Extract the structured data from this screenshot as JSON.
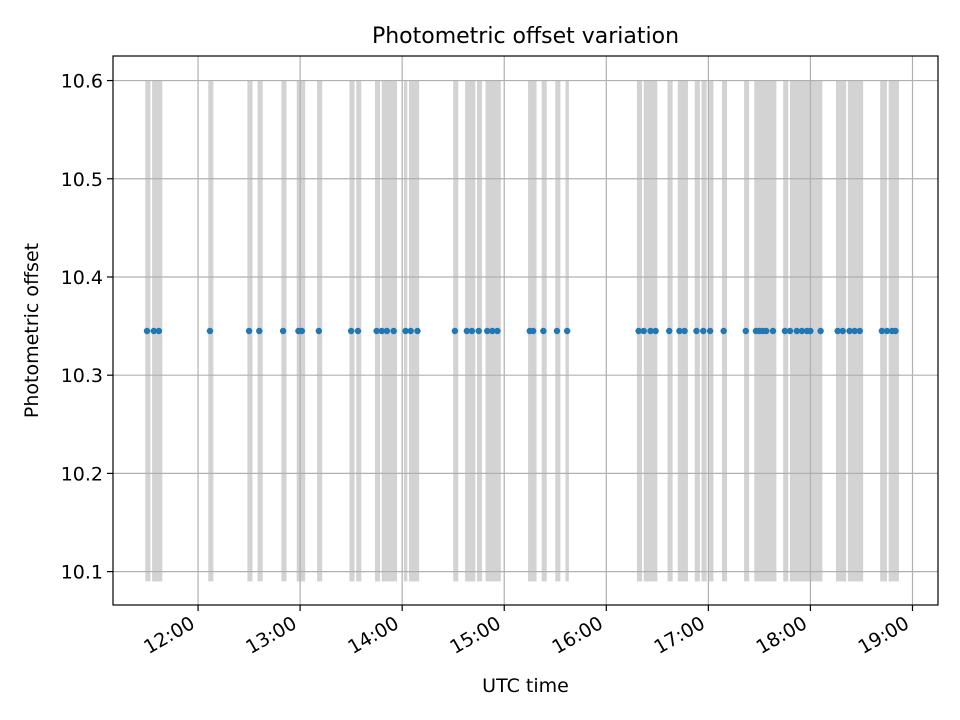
{
  "chart_data": {
    "type": "scatter",
    "title": "Photometric offset variation",
    "xlabel": "UTC time",
    "ylabel": "Photometric offset",
    "x_unit": "UTC hh:mm",
    "xlim": [
      "11:10",
      "19:15"
    ],
    "ylim": [
      10.066,
      10.625
    ],
    "grid": true,
    "x_ticks": [
      "12:00",
      "13:00",
      "14:00",
      "15:00",
      "16:00",
      "17:00",
      "18:00",
      "19:00"
    ],
    "y_ticks": [
      10.1,
      10.2,
      10.3,
      10.4,
      10.5,
      10.6
    ],
    "series": [
      {
        "marker_color": "#1f77b4",
        "points": [
          {
            "x": "11:30",
            "y": 10.345
          },
          {
            "x": "11:34",
            "y": 10.345
          },
          {
            "x": "11:37",
            "y": 10.345
          },
          {
            "x": "12:07",
            "y": 10.345
          },
          {
            "x": "12:30",
            "y": 10.345
          },
          {
            "x": "12:36",
            "y": 10.345
          },
          {
            "x": "12:50",
            "y": 10.345
          },
          {
            "x": "12:59",
            "y": 10.345
          },
          {
            "x": "13:01",
            "y": 10.345
          },
          {
            "x": "13:11",
            "y": 10.345
          },
          {
            "x": "13:30",
            "y": 10.345
          },
          {
            "x": "13:34",
            "y": 10.345
          },
          {
            "x": "13:45",
            "y": 10.345
          },
          {
            "x": "13:48",
            "y": 10.345
          },
          {
            "x": "13:51",
            "y": 10.345
          },
          {
            "x": "13:55",
            "y": 10.345
          },
          {
            "x": "14:02",
            "y": 10.345
          },
          {
            "x": "14:05",
            "y": 10.345
          },
          {
            "x": "14:09",
            "y": 10.345
          },
          {
            "x": "14:31",
            "y": 10.345
          },
          {
            "x": "14:38",
            "y": 10.345
          },
          {
            "x": "14:41",
            "y": 10.345
          },
          {
            "x": "14:45",
            "y": 10.345
          },
          {
            "x": "14:50",
            "y": 10.345
          },
          {
            "x": "14:53",
            "y": 10.345
          },
          {
            "x": "14:56",
            "y": 10.345
          },
          {
            "x": "15:15",
            "y": 10.345
          },
          {
            "x": "15:17",
            "y": 10.345
          },
          {
            "x": "15:23",
            "y": 10.345
          },
          {
            "x": "15:31",
            "y": 10.345
          },
          {
            "x": "15:37",
            "y": 10.345
          },
          {
            "x": "16:19",
            "y": 10.345
          },
          {
            "x": "16:22",
            "y": 10.345
          },
          {
            "x": "16:26",
            "y": 10.345
          },
          {
            "x": "16:29",
            "y": 10.345
          },
          {
            "x": "16:37",
            "y": 10.345
          },
          {
            "x": "16:43",
            "y": 10.345
          },
          {
            "x": "16:46",
            "y": 10.345
          },
          {
            "x": "16:53",
            "y": 10.345
          },
          {
            "x": "16:57",
            "y": 10.345
          },
          {
            "x": "17:01",
            "y": 10.345
          },
          {
            "x": "17:09",
            "y": 10.345
          },
          {
            "x": "17:22",
            "y": 10.345
          },
          {
            "x": "17:28",
            "y": 10.345
          },
          {
            "x": "17:30",
            "y": 10.345
          },
          {
            "x": "17:32",
            "y": 10.345
          },
          {
            "x": "17:34",
            "y": 10.345
          },
          {
            "x": "17:38",
            "y": 10.345
          },
          {
            "x": "17:45",
            "y": 10.345
          },
          {
            "x": "17:48",
            "y": 10.345
          },
          {
            "x": "17:52",
            "y": 10.345
          },
          {
            "x": "17:55",
            "y": 10.345
          },
          {
            "x": "17:58",
            "y": 10.345
          },
          {
            "x": "18:00",
            "y": 10.345
          },
          {
            "x": "18:06",
            "y": 10.345
          },
          {
            "x": "18:16",
            "y": 10.345
          },
          {
            "x": "18:19",
            "y": 10.345
          },
          {
            "x": "18:23",
            "y": 10.345
          },
          {
            "x": "18:26",
            "y": 10.345
          },
          {
            "x": "18:29",
            "y": 10.345
          },
          {
            "x": "18:42",
            "y": 10.345
          },
          {
            "x": "18:45",
            "y": 10.345
          },
          {
            "x": "18:48",
            "y": 10.345
          },
          {
            "x": "18:50",
            "y": 10.345
          }
        ]
      }
    ],
    "shaded_intervals": {
      "color": "#d3d3d3",
      "y_range": [
        10.09,
        10.6
      ],
      "ranges": [
        [
          "11:29",
          "11:32"
        ],
        [
          "11:33",
          "11:39"
        ],
        [
          "12:06",
          "12:09"
        ],
        [
          "12:29",
          "12:32"
        ],
        [
          "12:35",
          "12:38"
        ],
        [
          "12:49",
          "12:52"
        ],
        [
          "12:58",
          "13:03"
        ],
        [
          "13:10",
          "13:13"
        ],
        [
          "13:29",
          "13:32"
        ],
        [
          "13:33",
          "13:36"
        ],
        [
          "13:44",
          "13:47"
        ],
        [
          "13:48",
          "13:57"
        ],
        [
          "14:01",
          "14:03"
        ],
        [
          "14:04",
          "14:10"
        ],
        [
          "14:30",
          "14:33"
        ],
        [
          "14:37",
          "14:43"
        ],
        [
          "14:44",
          "14:47"
        ],
        [
          "14:49",
          "14:58"
        ],
        [
          "15:14",
          "15:19"
        ],
        [
          "15:22",
          "15:25"
        ],
        [
          "15:30",
          "15:33"
        ],
        [
          "15:36",
          "15:38"
        ],
        [
          "16:18",
          "16:21"
        ],
        [
          "16:22",
          "16:30"
        ],
        [
          "16:36",
          "16:39"
        ],
        [
          "16:42",
          "16:48"
        ],
        [
          "16:52",
          "16:55"
        ],
        [
          "16:56",
          "16:59"
        ],
        [
          "17:00",
          "17:03"
        ],
        [
          "17:08",
          "17:11"
        ],
        [
          "17:21",
          "17:24"
        ],
        [
          "17:27",
          "17:40"
        ],
        [
          "17:44",
          "17:47"
        ],
        [
          "17:48",
          "18:07"
        ],
        [
          "18:15",
          "18:21"
        ],
        [
          "18:22",
          "18:31"
        ],
        [
          "18:41",
          "18:45"
        ],
        [
          "18:46",
          "18:52"
        ]
      ]
    }
  }
}
